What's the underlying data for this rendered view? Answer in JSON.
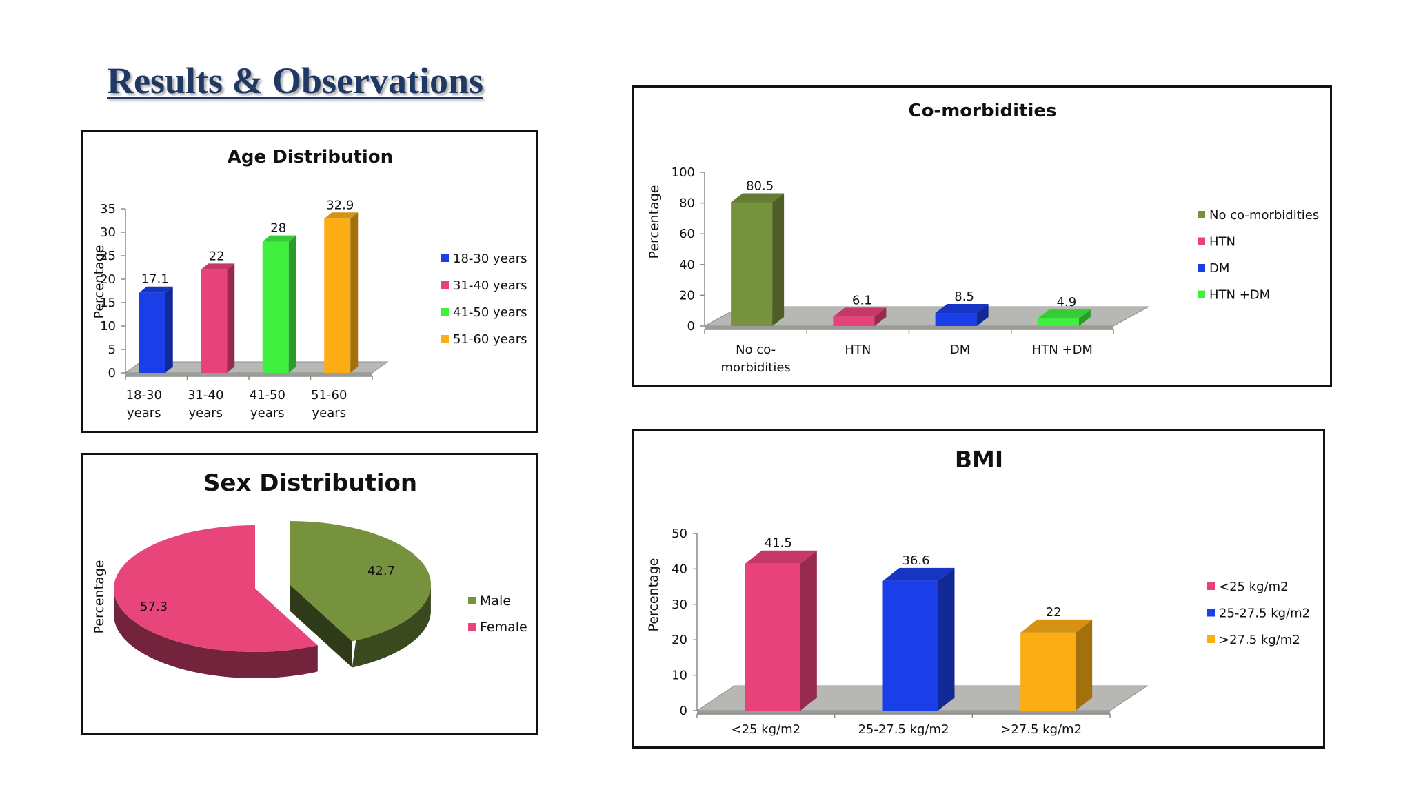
{
  "page_title": "Results & Observations",
  "chart_data": [
    {
      "id": "age",
      "type": "bar",
      "title": "Age Distribution",
      "ylabel": "Percentage",
      "xlabel": "",
      "ylim": [
        0,
        35
      ],
      "yticks": [
        0,
        5,
        10,
        15,
        20,
        25,
        30,
        35
      ],
      "categories": [
        "18-30 years",
        "31-40 years",
        "41-50 years",
        "51-60 years"
      ],
      "category_lines": [
        [
          "18-30",
          "years"
        ],
        [
          "31-40",
          "years"
        ],
        [
          "41-50",
          "years"
        ],
        [
          "51-60",
          "years"
        ]
      ],
      "values": [
        17.1,
        22,
        28,
        32.9
      ],
      "colors": [
        "#1a3ee8",
        "#e8427a",
        "#3ff03f",
        "#fcad14"
      ],
      "legend": [
        "18-30 years",
        "31-40 years",
        "41-50 years",
        "51-60 years"
      ],
      "legend_position": "right",
      "grid": false
    },
    {
      "id": "sex",
      "type": "pie",
      "title": "Sex Distribution",
      "ylabel": "Percentage",
      "categories": [
        "Male",
        "Female"
      ],
      "values": [
        42.7,
        57.3
      ],
      "colors": [
        "#76923c",
        "#e8457a"
      ],
      "legend": [
        "Male",
        "Female"
      ],
      "legend_position": "right"
    },
    {
      "id": "comorbidities",
      "type": "bar",
      "title": "Co-morbidities",
      "ylabel": "Percentage",
      "xlabel": "",
      "ylim": [
        0,
        100
      ],
      "yticks": [
        0,
        20,
        40,
        60,
        80,
        100
      ],
      "categories": [
        "No co-morbidities",
        "HTN",
        "DM",
        "HTN +DM"
      ],
      "category_lines": [
        [
          "No co-",
          "morbidities"
        ],
        [
          "HTN"
        ],
        [
          "DM"
        ],
        [
          "HTN +DM"
        ]
      ],
      "values": [
        80.5,
        6.1,
        8.5,
        4.9
      ],
      "colors": [
        "#76923c",
        "#e8427a",
        "#1a3ee8",
        "#3ff03f"
      ],
      "legend": [
        "No co-morbidities",
        "HTN",
        "DM",
        "HTN +DM"
      ],
      "legend_position": "right",
      "grid": false
    },
    {
      "id": "bmi",
      "type": "bar",
      "title": "BMI",
      "ylabel": "Percentage",
      "xlabel": "",
      "ylim": [
        0,
        50
      ],
      "yticks": [
        0,
        10,
        20,
        30,
        40,
        50
      ],
      "categories": [
        "<25 kg/m2",
        "25-27.5 kg/m2",
        ">27.5 kg/m2"
      ],
      "category_lines": [
        [
          "<25 kg/m2"
        ],
        [
          "25-27.5 kg/m2"
        ],
        [
          ">27.5 kg/m2"
        ]
      ],
      "values": [
        41.5,
        36.6,
        22
      ],
      "colors": [
        "#e8427a",
        "#1a3ee8",
        "#fcad14"
      ],
      "legend": [
        "<25 kg/m2",
        "25-27.5 kg/m2",
        ">27.5 kg/m2"
      ],
      "legend_position": "right",
      "grid": false
    }
  ]
}
